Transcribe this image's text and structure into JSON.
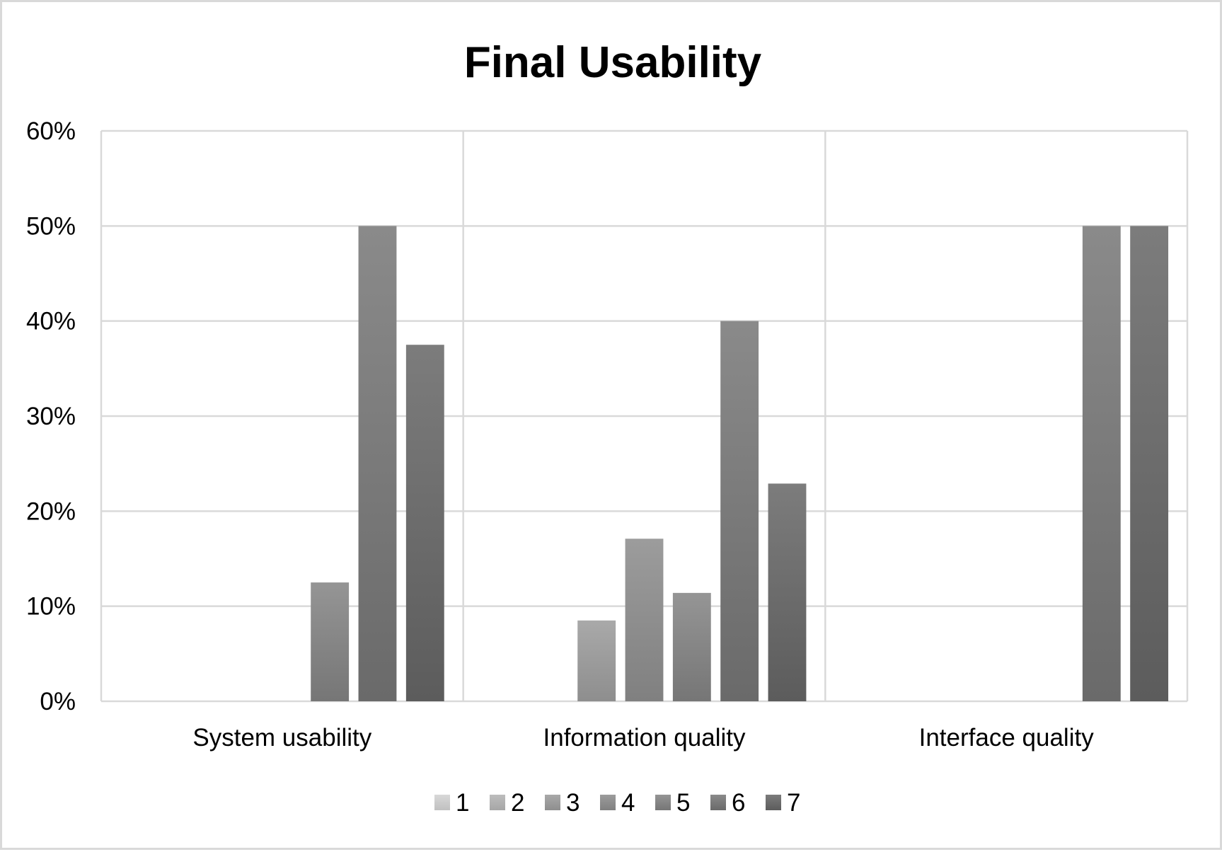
{
  "chart_data": {
    "type": "bar",
    "title": "Final Usability",
    "xlabel": "",
    "ylabel": "",
    "categories": [
      "System usability",
      "Information quality",
      "Interface quality"
    ],
    "series": [
      {
        "name": "1",
        "values": [
          0,
          0,
          0
        ]
      },
      {
        "name": "2",
        "values": [
          0,
          0,
          0
        ]
      },
      {
        "name": "3",
        "values": [
          0,
          8.5,
          0
        ]
      },
      {
        "name": "4",
        "values": [
          0,
          17.1,
          0
        ]
      },
      {
        "name": "5",
        "values": [
          12.5,
          11.4,
          0
        ]
      },
      {
        "name": "6",
        "values": [
          50,
          40,
          50
        ]
      },
      {
        "name": "7",
        "values": [
          37.5,
          22.9,
          50
        ]
      }
    ],
    "ylim": [
      0,
      60
    ],
    "yticks": [
      0,
      10,
      20,
      30,
      40,
      50,
      60
    ],
    "ytick_labels": [
      "0%",
      "10%",
      "20%",
      "30%",
      "40%",
      "50%",
      "60%"
    ],
    "grid": true,
    "legend_position": "bottom",
    "colors": {
      "gradient_light": [
        "#d8d8d8",
        "#bdbdbd",
        "#a9a9a9",
        "#9c9c9c",
        "#959595",
        "#8a8a8a",
        "#7c7c7c"
      ],
      "gradient_dark": [
        "#c0c0c0",
        "#a6a6a6",
        "#8e8e8e",
        "#808080",
        "#767676",
        "#6a6a6a",
        "#5c5c5c"
      ],
      "gridline": "#d9d9d9",
      "frame": "#d9d9d9"
    }
  }
}
